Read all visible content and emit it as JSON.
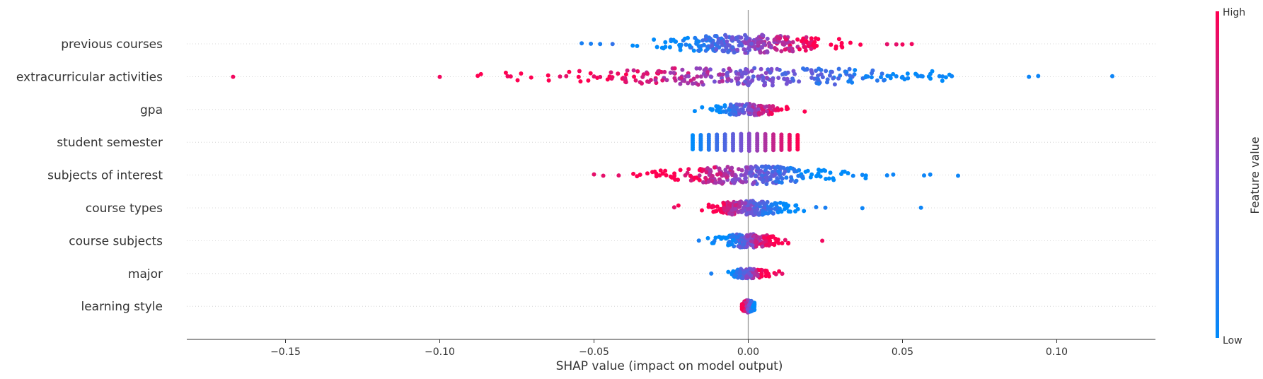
{
  "chart_data": {
    "type": "scatter",
    "subtype": "beeswarm",
    "title": "",
    "xlabel": "SHAP value (impact on model output)",
    "xlim": [
      -0.182,
      0.132
    ],
    "xticks": [
      -0.15,
      -0.1,
      -0.05,
      0.0,
      0.05,
      0.1
    ],
    "xtick_labels": [
      "−0.15",
      "−0.10",
      "−0.05",
      "0.00",
      "0.05",
      "0.10"
    ],
    "zero_line": true,
    "gridlines": "horizontal dotted per feature",
    "colorbar": {
      "title": "Feature value",
      "high_label": "High",
      "low_label": "Low",
      "low_color": "#008bfb",
      "high_color": "#ff0051"
    },
    "features": [
      {
        "name": "previous courses",
        "min": -0.054,
        "max": 0.053,
        "skew": 1,
        "spread": 1.0,
        "outliers": [
          [
            -0.054,
            0.1
          ],
          [
            -0.051,
            0.1
          ],
          [
            -0.048,
            0.1
          ],
          [
            -0.044,
            0.2
          ],
          [
            0.045,
            0.9
          ],
          [
            0.048,
            0.9
          ],
          [
            0.05,
            0.95
          ],
          [
            0.053,
            0.95
          ]
        ]
      },
      {
        "name": "extracurricular activities",
        "min": -0.168,
        "max": 0.118,
        "skew": -1,
        "spread": 1.0,
        "outliers": [
          [
            -0.167,
            0.95
          ],
          [
            -0.1,
            0.95
          ],
          [
            -0.078,
            0.95
          ],
          [
            -0.077,
            0.95
          ],
          [
            -0.061,
            0.9
          ],
          [
            -0.059,
            0.9
          ],
          [
            -0.05,
            0.9
          ],
          [
            -0.048,
            0.9
          ],
          [
            0.038,
            0.05
          ],
          [
            0.04,
            0.05
          ],
          [
            0.043,
            0.05
          ],
          [
            0.046,
            0.05
          ],
          [
            0.048,
            0.05
          ],
          [
            0.05,
            0.05
          ],
          [
            0.056,
            0.05
          ],
          [
            0.062,
            0.05
          ],
          [
            0.063,
            0.05
          ],
          [
            0.066,
            0.05
          ],
          [
            0.091,
            0.05
          ],
          [
            0.094,
            0.05
          ],
          [
            0.118,
            0.05
          ]
        ]
      },
      {
        "name": "gpa",
        "min": -0.022,
        "max": 0.022,
        "skew": 1,
        "spread": 0.5,
        "outliers": []
      },
      {
        "name": "student semester",
        "min": -0.018,
        "max": 0.016,
        "skew": 1,
        "spread": 0.9,
        "outliers": []
      },
      {
        "name": "subjects of interest",
        "min": -0.05,
        "max": 0.068,
        "skew": -1,
        "spread": 1.0,
        "outliers": [
          [
            -0.05,
            0.9
          ],
          [
            -0.047,
            0.9
          ],
          [
            -0.042,
            0.9
          ],
          [
            0.034,
            0.05
          ],
          [
            0.037,
            0.05
          ],
          [
            0.045,
            0.05
          ],
          [
            0.047,
            0.05
          ],
          [
            0.057,
            0.05
          ],
          [
            0.059,
            0.05
          ],
          [
            0.068,
            0.05
          ]
        ]
      },
      {
        "name": "course types",
        "min": -0.024,
        "max": 0.056,
        "skew": -1,
        "spread": 0.75,
        "outliers": [
          [
            -0.024,
            0.9
          ],
          [
            0.022,
            0.1
          ],
          [
            0.025,
            0.1
          ],
          [
            0.037,
            0.05
          ],
          [
            0.056,
            0.05
          ]
        ]
      },
      {
        "name": "course subjects",
        "min": -0.016,
        "max": 0.024,
        "skew": 1,
        "spread": 0.7,
        "outliers": [
          [
            -0.016,
            0.1
          ],
          [
            -0.011,
            0.1
          ],
          [
            0.012,
            0.9
          ],
          [
            0.024,
            0.95
          ]
        ]
      },
      {
        "name": "major",
        "min": -0.012,
        "max": 0.011,
        "skew": 1,
        "spread": 0.4,
        "outliers": [
          [
            -0.012,
            0.1
          ],
          [
            0.009,
            0.9
          ],
          [
            0.011,
            0.9
          ]
        ]
      },
      {
        "name": "learning style",
        "min": -0.002,
        "max": 0.002,
        "skew": -1,
        "spread": 0.6,
        "outliers": []
      }
    ]
  }
}
